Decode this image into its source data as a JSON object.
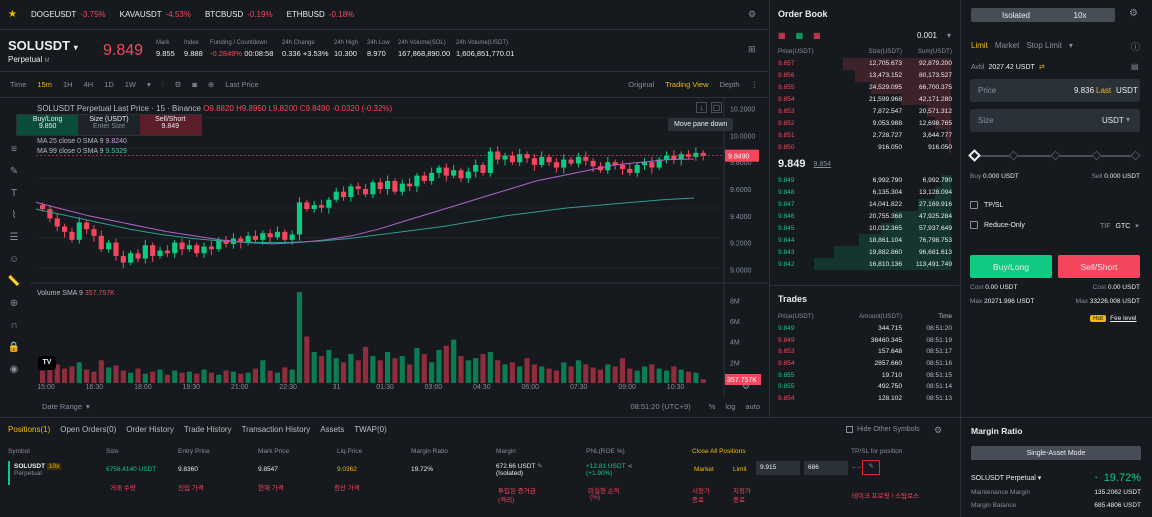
{
  "ticker": [
    {
      "sym": "DOGEUSDT",
      "chg": "-3.75%"
    },
    {
      "sym": "KAVAUSDT",
      "chg": "-4.53%"
    },
    {
      "sym": "BTCBUSD",
      "chg": "-0.19%"
    },
    {
      "sym": "ETHBUSD",
      "chg": "-0.18%"
    }
  ],
  "header": {
    "symbol": "SOLUSDT",
    "sub": "Perpetual",
    "sub_m": "M",
    "price": "9.849",
    "stats": [
      {
        "l": "Mark",
        "v": "9.855"
      },
      {
        "l": "Index",
        "v": "9.888"
      },
      {
        "l": "Funding / Countdown",
        "v": "-0.2849%",
        "v2": "00:08:58"
      },
      {
        "l": "24h Change",
        "v": "0.336 +3.53%"
      },
      {
        "l": "24h High",
        "v": "10.300"
      },
      {
        "l": "24h Low",
        "v": "8.970"
      },
      {
        "l": "24h Volume(SOL)",
        "v": "167,868,890.00"
      },
      {
        "l": "24h Volume(USDT)",
        "v": "1,606,851,770.01"
      }
    ]
  },
  "toolbar": {
    "items": [
      "Time",
      "15m",
      "1H",
      "4H",
      "1D",
      "1W"
    ],
    "last_price": "Last Price",
    "views": [
      "Original",
      "Trading View",
      "Depth"
    ]
  },
  "chart": {
    "legend": "SOLUSDT Perpetual Last Price · 15 · Binance",
    "ohlc": "O9.8820 H9.8950 L9.8200 C9.8490 -0.0320 (-0.32%)",
    "ma25": "MA 25 close 0 SMA 9",
    "ma99": "MA 99 close 0 SMA 9",
    "ma99v": "9.5329",
    "ma25v": "9.8240",
    "buy_label": "Buy/Long",
    "buy_price": "9.850",
    "size_label": "Size (USDT)",
    "size_ph": "Enter Size",
    "sell_label": "Sell/Short",
    "sell_price": "9.849",
    "tooltip": "Move pane down",
    "price_tag": "9.8490",
    "yticks": [
      "10.2000",
      "10.0000",
      "9.8000",
      "9.6000",
      "9.4000",
      "9.2000",
      "9.0000"
    ],
    "vol_label": "Volume SMA 9",
    "vol_val": "357.757K",
    "vol_tag": "357.757K",
    "vticks": [
      "8M",
      "6M",
      "4M",
      "2M"
    ],
    "xticks": [
      "15:00",
      "16:30",
      "18:00",
      "19:30",
      "21:00",
      "22:30",
      "31",
      "01:30",
      "03:00",
      "04:30",
      "06:00",
      "07:30",
      "09:00",
      "10:30"
    ],
    "date_range": "Date Range",
    "clock": "08:51:20 (UTC+9)",
    "pct": "%",
    "log": "log",
    "auto": "auto"
  },
  "chart_data": {
    "type": "candlestick",
    "title": "SOLUSDT Perpetual Last Price · 15 · Binance",
    "ylim": [
      8.95,
      10.25
    ],
    "closes": [
      9.45,
      9.38,
      9.32,
      9.28,
      9.22,
      9.35,
      9.3,
      9.25,
      9.15,
      9.2,
      9.1,
      9.05,
      9.12,
      9.08,
      9.18,
      9.1,
      9.14,
      9.12,
      9.2,
      9.15,
      9.18,
      9.12,
      9.17,
      9.15,
      9.22,
      9.19,
      9.23,
      9.2,
      9.25,
      9.22,
      9.27,
      9.24,
      9.28,
      9.22,
      9.26,
      9.5,
      9.45,
      9.48,
      9.46,
      9.52,
      9.58,
      9.54,
      9.62,
      9.6,
      9.56,
      9.65,
      9.6,
      9.66,
      9.58,
      9.64,
      9.62,
      9.7,
      9.66,
      9.72,
      9.76,
      9.7,
      9.74,
      9.68,
      9.73,
      9.78,
      9.72,
      9.88,
      9.82,
      9.85,
      9.8,
      9.86,
      9.83,
      9.78,
      9.84,
      9.8,
      9.76,
      9.82,
      9.79,
      9.84,
      9.81,
      9.77,
      9.74,
      9.8,
      9.78,
      9.75,
      9.72,
      9.78,
      9.8,
      9.76,
      9.82,
      9.85,
      9.82,
      9.86,
      9.84,
      9.87,
      9.849
    ],
    "volume_millions": [
      1.2,
      2.5,
      1.8,
      1.4,
      1.6,
      2.0,
      1.3,
      1.1,
      2.2,
      1.5,
      1.7,
      1.2,
      1.0,
      1.4,
      0.9,
      1.1,
      1.3,
      0.8,
      1.2,
      1.0,
      1.1,
      0.9,
      1.3,
      1.0,
      0.8,
      1.2,
      1.1,
      0.9,
      1.0,
      1.4,
      2.2,
      1.2,
      1.0,
      1.5,
      1.3,
      8.8,
      4.5,
      3.0,
      2.6,
      3.2,
      2.4,
      2.0,
      2.8,
      2.2,
      3.5,
      2.6,
      2.2,
      3.0,
      2.4,
      2.6,
      1.8,
      3.4,
      2.8,
      2.0,
      3.2,
      3.6,
      4.2,
      2.6,
      2.2,
      2.4,
      2.8,
      3.0,
      2.2,
      1.8,
      2.0,
      1.6,
      2.4,
      1.8,
      1.6,
      1.4,
      1.2,
      2.0,
      1.6,
      2.2,
      1.8,
      1.5,
      1.3,
      1.8,
      1.6,
      2.4,
      1.4,
      1.2,
      1.6,
      1.8,
      1.4,
      1.2,
      1.6,
      1.3,
      1.1,
      1.0,
      0.36
    ],
    "ma25": [
      9.5,
      9.45,
      9.4,
      9.36,
      9.32,
      9.28,
      9.25,
      9.22,
      9.2,
      9.19,
      9.2,
      9.22,
      9.25,
      9.3,
      9.36,
      9.42,
      9.48,
      9.54,
      9.6,
      9.66,
      9.7,
      9.74,
      9.78,
      9.8,
      9.82,
      9.824
    ],
    "ma99": [
      9.45,
      9.4,
      9.35,
      9.3,
      9.26,
      9.23,
      9.21,
      9.2,
      9.2,
      9.21,
      9.23,
      9.26,
      9.29,
      9.32,
      9.36,
      9.4,
      9.43,
      9.46,
      9.48,
      9.5,
      9.52,
      9.533
    ]
  },
  "orderbook": {
    "title": "Order Book",
    "tick": "0.001",
    "cols": [
      "Price(USDT)",
      "Size(USDT)",
      "Sum(USDT)"
    ],
    "asks": [
      [
        "9.857",
        "12,705.673",
        "92,879.200",
        0.62
      ],
      [
        "9.856",
        "13,473.152",
        "80,173.527",
        0.55
      ],
      [
        "9.855",
        "24,529.095",
        "66,700.375",
        0.46
      ],
      [
        "9.854",
        "21,599.968",
        "42,171.280",
        0.29
      ],
      [
        "9.853",
        "7,872.547",
        "20,571.312",
        0.14
      ],
      [
        "9.852",
        "9,053.988",
        "12,698.765",
        0.09
      ],
      [
        "9.851",
        "2,728.727",
        "3,644.777",
        0.03
      ],
      [
        "9.850",
        "916.050",
        "916.050",
        0.01
      ]
    ],
    "mid": "9.849",
    "mid_mark": "9.854",
    "bids": [
      [
        "9.849",
        "6,992.790",
        "6,992.790",
        0.05
      ],
      [
        "9.848",
        "6,135.304",
        "13,128.094",
        0.09
      ],
      [
        "9.847",
        "14,041.822",
        "27,169.916",
        0.19
      ],
      [
        "9.846",
        "20,755.368",
        "47,925.284",
        0.33
      ],
      [
        "9.845",
        "10,012.365",
        "57,937.649",
        0.4
      ],
      [
        "9.844",
        "18,861.104",
        "76,798.753",
        0.53
      ],
      [
        "9.843",
        "19,882.860",
        "96,681.613",
        0.67
      ],
      [
        "9.842",
        "16,810.136",
        "113,491.749",
        0.79
      ]
    ]
  },
  "trades": {
    "title": "Trades",
    "cols": [
      "Price(USDT)",
      "Amount(USDT)",
      "Time"
    ],
    "rows": [
      [
        "9.849",
        "344.715",
        "08:51:20",
        "g"
      ],
      [
        "9.849",
        "38460.345",
        "08:51:19",
        "r"
      ],
      [
        "9.853",
        "157.648",
        "08:51:17",
        "r"
      ],
      [
        "9.854",
        "2857.660",
        "08:51:16",
        "r"
      ],
      [
        "9.855",
        "19.710",
        "08:51:15",
        "g"
      ],
      [
        "9.855",
        "492.750",
        "08:51:14",
        "g"
      ],
      [
        "9.854",
        "128.102",
        "08:51:13",
        "r"
      ]
    ]
  },
  "trade_panel": {
    "mode": "Isolated",
    "lev": "10x",
    "tabs": [
      "Limit",
      "Market",
      "Stop Limit"
    ],
    "avbl_l": "Avbl",
    "avbl": "2027.42 USDT",
    "price_l": "Price",
    "price_v": "9.836",
    "last": "Last",
    "usdt": "USDT",
    "size_l": "Size",
    "size_unit": "USDT",
    "buy_l": "Buy",
    "buy_v": "0.000 USDT",
    "sell_l": "Sell",
    "sell_v": "0.000 USDT",
    "tpsl": "TP/SL",
    "reduce": "Reduce-Only",
    "tif": "TIF",
    "gtc": "GTC",
    "buy_btn": "Buy/Long",
    "sell_btn": "Sell/Short",
    "cost_l": "Cost",
    "cost_b": "0.00 USDT",
    "cost_s": "0.00 USDT",
    "max_l": "Max",
    "max_b": "20271.996 USDT",
    "max_s": "33226.008 USDT",
    "hot": "Hot",
    "fee": "Fee level"
  },
  "margin": {
    "title": "Margin Ratio",
    "mode": "Single-Asset Mode",
    "sym": "SOLUSDT Perpetual",
    "ratio": "19.72%",
    "maint_l": "Maintenance Margin",
    "maint": "135.2062 USDT",
    "bal_l": "Margin Balance",
    "bal": "685.4806 USDT"
  },
  "positions": {
    "tabs": [
      "Positions(1)",
      "Open Orders(0)",
      "Order History",
      "Trade History",
      "Transaction History",
      "Assets",
      "TWAP(0)"
    ],
    "hide": "Hide Other Symbols",
    "cols": [
      "Symbol",
      "Size",
      "Entry Price",
      "Mark Price",
      "Liq.Price",
      "Margin Ratio",
      "Margin",
      "PNL(ROE %)",
      "Close All Positions",
      "TP/SL for position"
    ],
    "row": {
      "sym": "SOLUSDT",
      "sub": "Perpetual",
      "lev": "10x",
      "size": "6756.4140 USDT",
      "entry": "9.8360",
      "mark": "9.8547",
      "liq": "9.0362",
      "ratio": "19.72%",
      "margin": "672.66 USDT",
      "margin_sub": "(Isolated)",
      "pnl": "+12.81 USDT",
      "roe": "(+1.90%)",
      "market": "Market",
      "limit": "Limit",
      "limit_price": "9.915",
      "limit_qty": "686",
      "tpsl": "– –"
    },
    "notes": [
      "거래 수량",
      "진입 가격",
      "현재 가격",
      "청산 가격",
      "투입된 증거금",
      "(격리)",
      "미실현 손익",
      "(%)",
      "시장가",
      "종료",
      "지정가",
      "종료",
      "테이크 프로핏 / 스탑로스"
    ]
  }
}
